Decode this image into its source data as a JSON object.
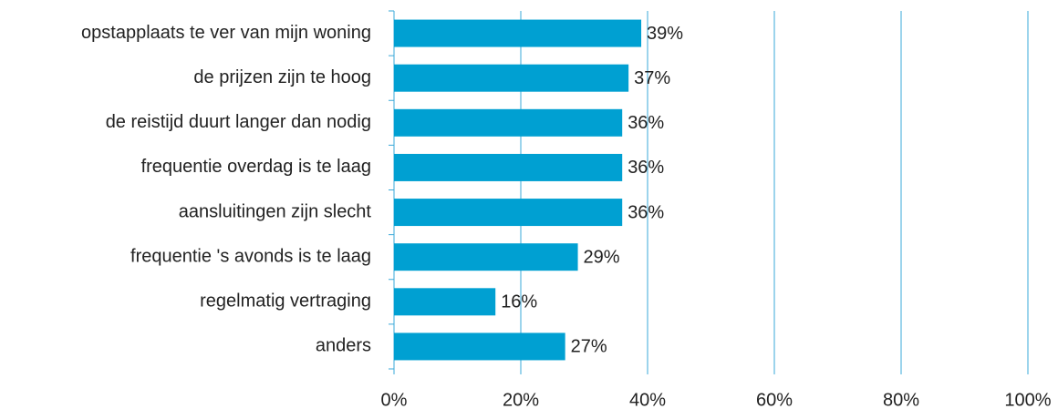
{
  "chart_data": {
    "type": "bar",
    "orientation": "horizontal",
    "categories": [
      "opstapplaats te ver van mijn woning",
      "de prijzen zijn te hoog",
      "de reistijd duurt langer dan nodig",
      "frequentie overdag is te laag",
      "aansluitingen zijn slecht",
      "frequentie 's avonds is te laag",
      "regelmatig vertraging",
      "anders"
    ],
    "values": [
      39,
      37,
      36,
      36,
      36,
      29,
      16,
      27
    ],
    "value_labels": [
      "39%",
      "37%",
      "36%",
      "36%",
      "36%",
      "29%",
      "16%",
      "27%"
    ],
    "color": "#00a0d2",
    "xlim": [
      0,
      100
    ],
    "xticks": [
      {
        "value": 0,
        "label": "0%"
      },
      {
        "value": 20,
        "label": "20%"
      },
      {
        "value": 40,
        "label": "40%"
      },
      {
        "value": 60,
        "label": "60%"
      },
      {
        "value": 80,
        "label": "80%"
      },
      {
        "value": 100,
        "label": "100%"
      }
    ],
    "grid": true
  }
}
